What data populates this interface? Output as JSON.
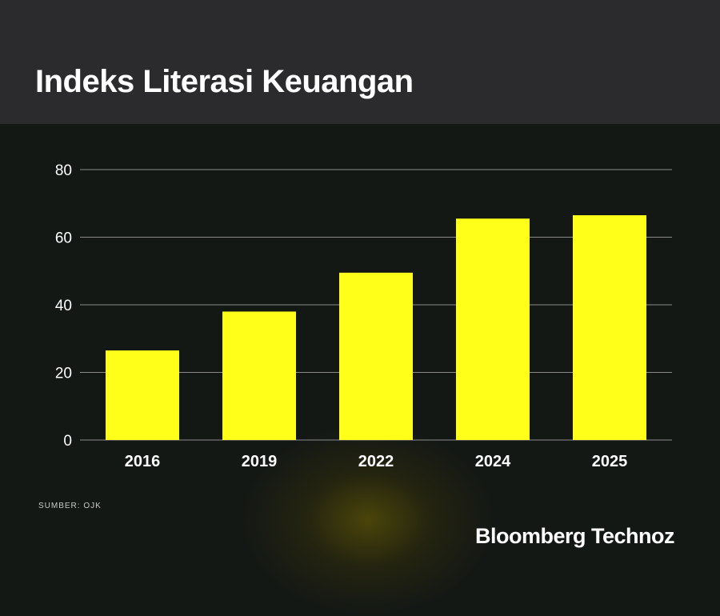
{
  "header": {
    "title": "Indeks Literasi Keuangan"
  },
  "footer": {
    "source": "SUMBER: OJK",
    "brand": "Bloomberg Technoz"
  },
  "colors": {
    "bar": "#ffff1a",
    "grid": "#8a8a8a",
    "header_bg": "#2b2b2e",
    "page_bg": "#141815"
  },
  "chart_data": {
    "type": "bar",
    "title": "Indeks Literasi Keuangan",
    "categories": [
      "2016",
      "2019",
      "2022",
      "2024",
      "2025"
    ],
    "values": [
      26.5,
      38.0,
      49.5,
      65.5,
      66.5
    ],
    "yticks": [
      0,
      20,
      40,
      60,
      80
    ],
    "ylim": [
      0,
      80
    ],
    "xlabel": "",
    "ylabel": "",
    "grid": true
  }
}
